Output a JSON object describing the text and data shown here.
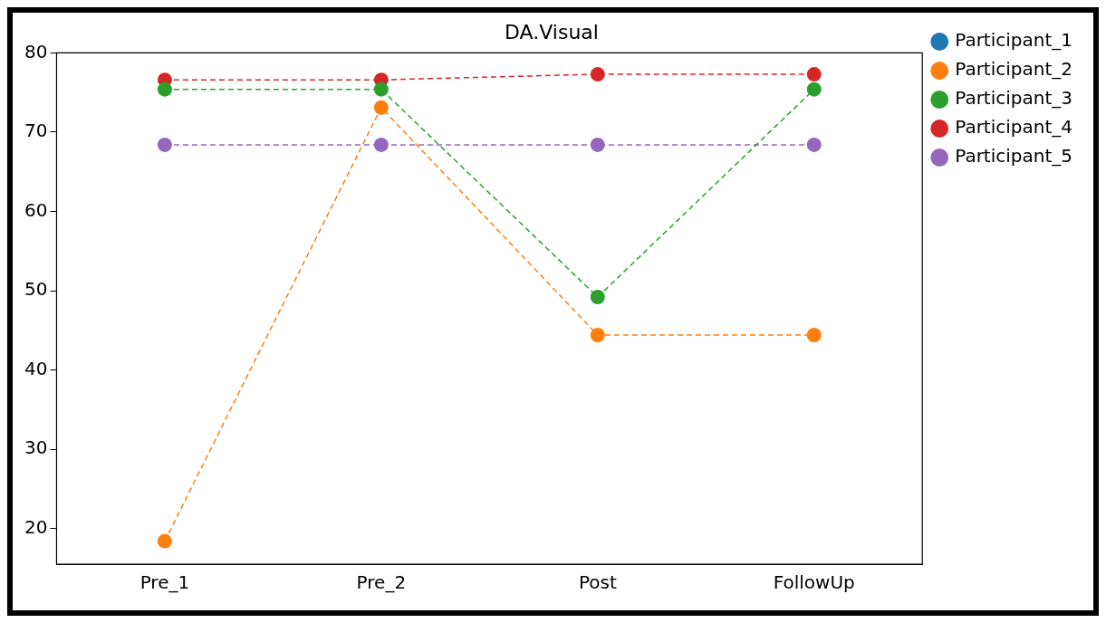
{
  "chart_data": {
    "type": "line",
    "title": "DA.Visual",
    "categories": [
      "Pre_1",
      "Pre_2",
      "Post",
      "FollowUp"
    ],
    "series": [
      {
        "name": "Participant_1",
        "color": "#1f77b4",
        "values": [
          null,
          null,
          null,
          null
        ]
      },
      {
        "name": "Participant_2",
        "color": "#ff7f0e",
        "values": [
          18.4,
          73.1,
          44.4,
          44.4
        ]
      },
      {
        "name": "Participant_3",
        "color": "#2ca02c",
        "values": [
          75.4,
          75.4,
          49.2,
          75.4
        ]
      },
      {
        "name": "Participant_4",
        "color": "#d62728",
        "values": [
          76.6,
          76.6,
          77.3,
          77.3
        ]
      },
      {
        "name": "Participant_5",
        "color": "#9467bd",
        "values": [
          68.4,
          68.4,
          68.4,
          68.4
        ]
      }
    ],
    "ylim": [
      15.5,
      80
    ],
    "yticks": [
      20,
      30,
      40,
      50,
      60,
      70,
      80
    ],
    "grid": false,
    "legend": "top right",
    "marker": "circle",
    "line_style": "dashed"
  }
}
